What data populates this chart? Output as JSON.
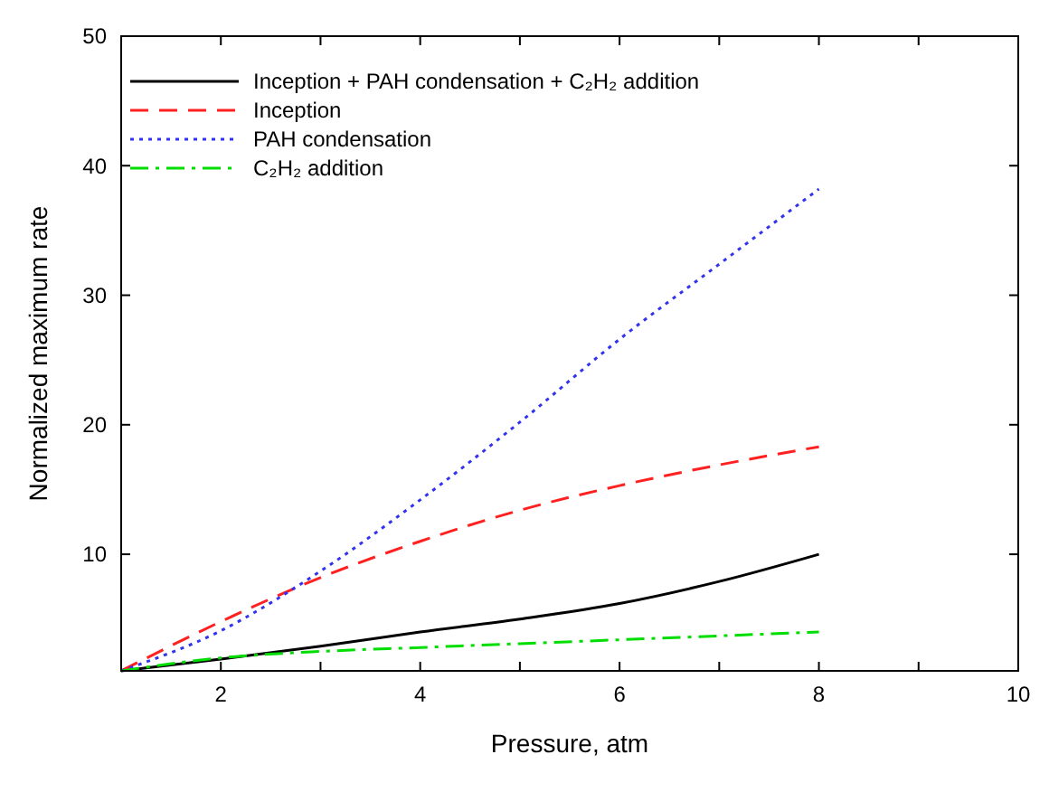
{
  "chart_data": {
    "type": "line",
    "xlabel": "Pressure, atm",
    "ylabel": "Normalized maximum rate",
    "xlim": [
      1,
      10
    ],
    "ylim": [
      1,
      50
    ],
    "xticks": [
      2,
      {
        "value": 3,
        "label": null
      },
      4,
      {
        "value": 5,
        "label": null
      },
      6,
      {
        "value": 7,
        "label": null
      },
      8,
      {
        "value": 9,
        "label": null
      },
      10
    ],
    "yticks": [
      10,
      20,
      30,
      40,
      50
    ],
    "grid": false,
    "legend": "top left",
    "x": [
      1,
      2,
      3,
      4,
      5,
      6,
      7,
      8
    ],
    "series": [
      {
        "name": "Inception + PAH condensation + C₂H₂ addition",
        "color": "#000000",
        "line_style": "solid",
        "values": [
          1,
          1.9,
          2.9,
          4.0,
          5.0,
          6.2,
          7.9,
          10.0
        ]
      },
      {
        "name": "Inception",
        "color": "#ff2020",
        "line_style": "dashed",
        "values": [
          1,
          4.8,
          8.2,
          11.0,
          13.4,
          15.3,
          16.9,
          18.3
        ]
      },
      {
        "name": "PAH condensation",
        "color": "#3333ee",
        "line_style": "dotted",
        "values": [
          1,
          4.1,
          8.7,
          14.2,
          20.2,
          26.6,
          32.4,
          38.2
        ]
      },
      {
        "name": "C₂H₂ addition",
        "color": "#00dd00",
        "line_style": "dashdot",
        "values": [
          1,
          2.0,
          2.5,
          2.8,
          3.1,
          3.4,
          3.7,
          4.0
        ]
      }
    ]
  }
}
